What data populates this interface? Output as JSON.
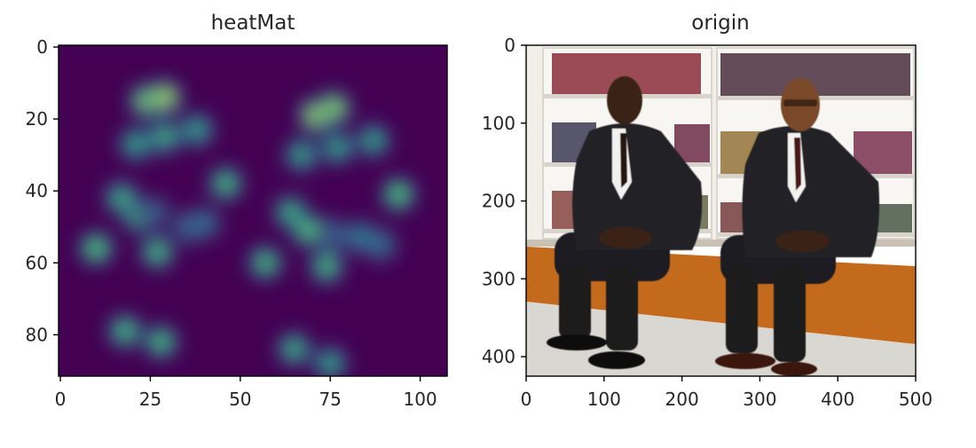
{
  "chart_data": [
    {
      "type": "heatmap",
      "title": "heatMat",
      "colormap": "viridis",
      "grid": false,
      "xlim": [
        -0.5,
        107.5
      ],
      "ylim": [
        91.5,
        -0.5
      ],
      "xticks": [
        0,
        25,
        50,
        75,
        100
      ],
      "yticks": [
        0,
        20,
        40,
        60,
        80
      ],
      "xticklabels": [
        "0",
        "25",
        "50",
        "75",
        "100"
      ],
      "yticklabels": [
        "0",
        "20",
        "40",
        "60",
        "80"
      ],
      "blobs": [
        {
          "x": 24,
          "y": 15,
          "value": 0.85
        },
        {
          "x": 29,
          "y": 14,
          "value": 0.9
        },
        {
          "x": 71,
          "y": 19,
          "value": 0.9
        },
        {
          "x": 76,
          "y": 17,
          "value": 0.85
        },
        {
          "x": 21,
          "y": 27,
          "value": 0.6
        },
        {
          "x": 29,
          "y": 25,
          "value": 0.65
        },
        {
          "x": 38,
          "y": 23,
          "value": 0.6
        },
        {
          "x": 67,
          "y": 30,
          "value": 0.6
        },
        {
          "x": 77,
          "y": 28,
          "value": 0.6
        },
        {
          "x": 87,
          "y": 26,
          "value": 0.6
        },
        {
          "x": 46,
          "y": 38,
          "value": 0.7
        },
        {
          "x": 94,
          "y": 41,
          "value": 0.75
        },
        {
          "x": 17,
          "y": 42,
          "value": 0.65
        },
        {
          "x": 22,
          "y": 47,
          "value": 0.7
        },
        {
          "x": 26,
          "y": 46,
          "value": 0.35
        },
        {
          "x": 36,
          "y": 50,
          "value": 0.45
        },
        {
          "x": 40,
          "y": 49,
          "value": 0.4
        },
        {
          "x": 64,
          "y": 46,
          "value": 0.65
        },
        {
          "x": 69,
          "y": 51,
          "value": 0.75
        },
        {
          "x": 76,
          "y": 52,
          "value": 0.35
        },
        {
          "x": 84,
          "y": 53,
          "value": 0.5
        },
        {
          "x": 89,
          "y": 55,
          "value": 0.4
        },
        {
          "x": 10,
          "y": 56,
          "value": 0.75
        },
        {
          "x": 27,
          "y": 57,
          "value": 0.7
        },
        {
          "x": 57,
          "y": 60,
          "value": 0.7
        },
        {
          "x": 74,
          "y": 61,
          "value": 0.7
        },
        {
          "x": 18,
          "y": 79,
          "value": 0.7
        },
        {
          "x": 28,
          "y": 82,
          "value": 0.7
        },
        {
          "x": 65,
          "y": 84,
          "value": 0.65
        },
        {
          "x": 75,
          "y": 88,
          "value": 0.6
        }
      ]
    },
    {
      "type": "image",
      "title": "origin",
      "grid": false,
      "xlim": [
        0,
        500
      ],
      "ylim": [
        425,
        0
      ],
      "xticks": [
        0,
        100,
        200,
        300,
        400,
        500
      ],
      "yticks": [
        0,
        100,
        200,
        300,
        400
      ],
      "xticklabels": [
        "0",
        "100",
        "200",
        "300",
        "400",
        "500"
      ],
      "yticklabels": [
        "0",
        "100",
        "200",
        "300",
        "400"
      ]
    }
  ]
}
